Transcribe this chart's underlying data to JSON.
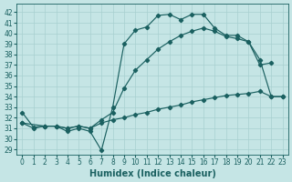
{
  "xlabel": "Humidex (Indice chaleur)",
  "background_color": "#c5e5e5",
  "grid_color": "#a8d0d0",
  "line_color": "#1a6060",
  "xlim": [
    -0.5,
    23.5
  ],
  "ylim": [
    28.5,
    42.8
  ],
  "yticks": [
    29,
    30,
    31,
    32,
    33,
    34,
    35,
    36,
    37,
    38,
    39,
    40,
    41,
    42
  ],
  "xticks": [
    0,
    1,
    2,
    3,
    4,
    5,
    6,
    7,
    8,
    9,
    10,
    11,
    12,
    13,
    14,
    15,
    16,
    17,
    18,
    19,
    20,
    21,
    22,
    23
  ],
  "curve1_x": [
    0,
    1,
    2,
    3,
    4,
    5,
    6,
    7,
    8,
    9,
    10,
    11,
    12,
    13,
    14,
    15,
    16,
    17,
    18,
    19,
    20,
    21,
    22,
    23
  ],
  "curve1_y": [
    32.5,
    31.1,
    31.2,
    31.2,
    30.7,
    31.0,
    30.7,
    28.9,
    33.0,
    39.0,
    40.3,
    40.6,
    41.7,
    41.8,
    41.3,
    41.8,
    41.8,
    40.5,
    39.8,
    39.8,
    39.2,
    37.5,
    34.0,
    34.0
  ],
  "curve2_x": [
    0,
    2,
    3,
    4,
    5,
    6,
    7,
    8,
    9,
    10,
    11,
    12,
    13,
    14,
    15,
    16,
    17,
    18,
    19,
    20,
    21,
    22
  ],
  "curve2_y": [
    31.5,
    31.2,
    31.2,
    31.0,
    31.2,
    31.0,
    31.8,
    32.5,
    34.8,
    36.5,
    37.5,
    38.5,
    39.2,
    39.8,
    40.2,
    40.5,
    40.2,
    39.7,
    39.5,
    39.2,
    37.0,
    37.2
  ],
  "curve3_x": [
    0,
    1,
    2,
    3,
    4,
    5,
    6,
    7,
    8,
    9,
    10,
    11,
    12,
    13,
    14,
    15,
    16,
    17,
    18,
    19,
    20,
    21,
    22,
    23
  ],
  "curve3_y": [
    31.5,
    31.0,
    31.2,
    31.2,
    31.0,
    31.2,
    31.0,
    31.5,
    31.8,
    32.0,
    32.3,
    32.5,
    32.8,
    33.0,
    33.2,
    33.5,
    33.7,
    33.9,
    34.1,
    34.2,
    34.3,
    34.5,
    34.0,
    34.0
  ],
  "tick_fontsize": 5.5,
  "axis_fontsize": 7
}
